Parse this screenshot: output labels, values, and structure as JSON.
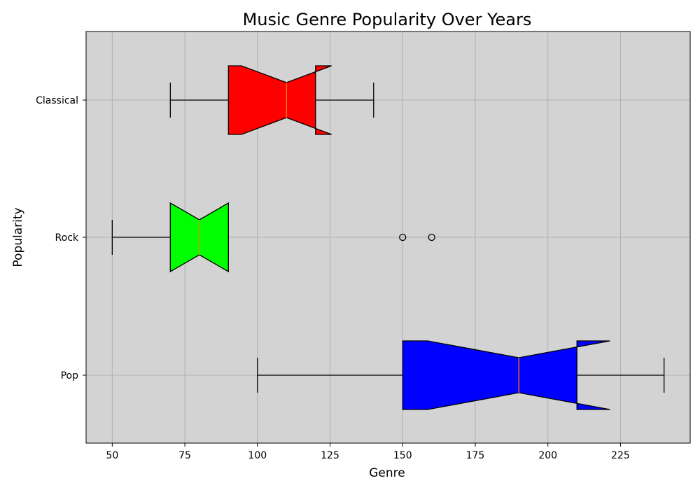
{
  "chart_data": {
    "type": "boxplot",
    "orientation": "horizontal",
    "notched": true,
    "title": "Music Genre Popularity Over Years",
    "xlabel": "Genre",
    "ylabel": "Popularity",
    "xlim": [
      41,
      249
    ],
    "x_ticks": [
      50,
      75,
      100,
      125,
      150,
      175,
      200,
      225
    ],
    "grid": true,
    "plot_background": "#d3d3d3",
    "categories": [
      "Pop",
      "Rock",
      "Classical"
    ],
    "boxes": [
      {
        "category": "Pop",
        "color": "#0000ff",
        "whisker_low": 100,
        "q1": 150,
        "median": 190,
        "q3": 210,
        "whisker_high": 240,
        "notch_low": 158.6,
        "notch_high": 221.4,
        "outliers": []
      },
      {
        "category": "Rock",
        "color": "#00ff00",
        "whisker_low": 50,
        "q1": 70,
        "median": 80,
        "q3": 90,
        "whisker_high": 90,
        "notch_low": 70,
        "notch_high": 90,
        "outliers": [
          150,
          160
        ]
      },
      {
        "category": "Classical",
        "color": "#ff0000",
        "whisker_low": 70,
        "q1": 90,
        "median": 110,
        "q3": 120,
        "whisker_high": 140,
        "notch_low": 94.5,
        "notch_high": 125.5,
        "outliers": []
      }
    ],
    "median_line_color": "#ff7f0e"
  }
}
